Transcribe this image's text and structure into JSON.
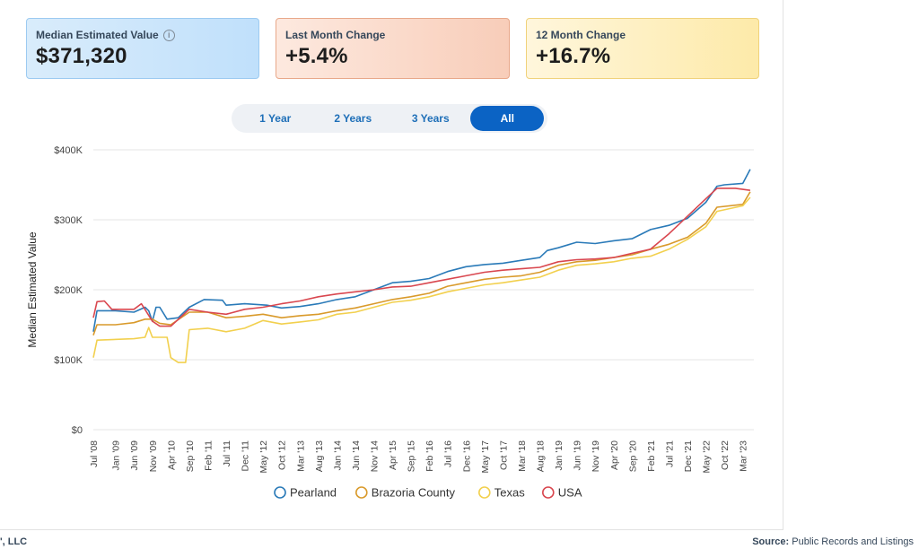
{
  "cards": [
    {
      "label": "Median Estimated Value",
      "value": "$371,320",
      "info_icon": "info-icon"
    },
    {
      "label": "Last Month Change",
      "value": "+5.4%"
    },
    {
      "label": "12 Month Change",
      "value": "+16.7%"
    }
  ],
  "tabs": [
    {
      "label": "1 Year",
      "active": false
    },
    {
      "label": "2 Years",
      "active": false
    },
    {
      "label": "3 Years",
      "active": false
    },
    {
      "label": "All",
      "active": true
    }
  ],
  "footer": {
    "left": "', LLC",
    "source_label": "Source:",
    "source_text": "Public Records and Listings"
  },
  "chart_data": {
    "type": "line",
    "ylabel": "Median Estimated Value",
    "xlabel": "",
    "ylim": [
      0,
      400000
    ],
    "xlim": [
      "2008-07",
      "2023-06"
    ],
    "grid": true,
    "legend_position": "bottom",
    "y_ticks": [
      {
        "value": 0,
        "label": "$0"
      },
      {
        "value": 100000,
        "label": "$100K"
      },
      {
        "value": 200000,
        "label": "$200K"
      },
      {
        "value": 300000,
        "label": "$300K"
      },
      {
        "value": 400000,
        "label": "$400K"
      }
    ],
    "x_ticks": [
      {
        "date": "2008-07",
        "label": "Jul '08"
      },
      {
        "date": "2009-01",
        "label": "Jan '09"
      },
      {
        "date": "2009-06",
        "label": "Jun '09"
      },
      {
        "date": "2009-11",
        "label": "Nov '09"
      },
      {
        "date": "2010-04",
        "label": "Apr '10"
      },
      {
        "date": "2010-09",
        "label": "Sep '10"
      },
      {
        "date": "2011-02",
        "label": "Feb '11"
      },
      {
        "date": "2011-07",
        "label": "Jul '11"
      },
      {
        "date": "2011-12",
        "label": "Dec '11"
      },
      {
        "date": "2012-05",
        "label": "May '12"
      },
      {
        "date": "2012-10",
        "label": "Oct '12"
      },
      {
        "date": "2013-03",
        "label": "Mar '13"
      },
      {
        "date": "2013-08",
        "label": "Aug '13"
      },
      {
        "date": "2014-01",
        "label": "Jan '14"
      },
      {
        "date": "2014-06",
        "label": "Jun '14"
      },
      {
        "date": "2014-11",
        "label": "Nov '14"
      },
      {
        "date": "2015-04",
        "label": "Apr '15"
      },
      {
        "date": "2015-09",
        "label": "Sep '15"
      },
      {
        "date": "2016-02",
        "label": "Feb '16"
      },
      {
        "date": "2016-07",
        "label": "Jul '16"
      },
      {
        "date": "2016-12",
        "label": "Dec '16"
      },
      {
        "date": "2017-05",
        "label": "May '17"
      },
      {
        "date": "2017-10",
        "label": "Oct '17"
      },
      {
        "date": "2018-03",
        "label": "Mar '18"
      },
      {
        "date": "2018-08",
        "label": "Aug '18"
      },
      {
        "date": "2019-01",
        "label": "Jan '19"
      },
      {
        "date": "2019-06",
        "label": "Jun '19"
      },
      {
        "date": "2019-11",
        "label": "Nov '19"
      },
      {
        "date": "2020-04",
        "label": "Apr '20"
      },
      {
        "date": "2020-09",
        "label": "Sep '20"
      },
      {
        "date": "2021-02",
        "label": "Feb '21"
      },
      {
        "date": "2021-07",
        "label": "Jul '21"
      },
      {
        "date": "2021-12",
        "label": "Dec '21"
      },
      {
        "date": "2022-05",
        "label": "May '22"
      },
      {
        "date": "2022-10",
        "label": "Oct '22"
      },
      {
        "date": "2023-03",
        "label": "Mar '23"
      }
    ],
    "series": [
      {
        "name": "Pearland",
        "color": "#2a7ab8",
        "points": [
          [
            "2008-07",
            140000
          ],
          [
            "2008-08",
            170000
          ],
          [
            "2009-01",
            170000
          ],
          [
            "2009-06",
            168000
          ],
          [
            "2009-09",
            175000
          ],
          [
            "2009-10",
            170000
          ],
          [
            "2009-11",
            155000
          ],
          [
            "2009-12",
            175000
          ],
          [
            "2010-01",
            175000
          ],
          [
            "2010-03",
            158000
          ],
          [
            "2010-06",
            160000
          ],
          [
            "2010-09",
            175000
          ],
          [
            "2011-01",
            186000
          ],
          [
            "2011-06",
            185000
          ],
          [
            "2011-07",
            178000
          ],
          [
            "2011-12",
            180000
          ],
          [
            "2012-06",
            178000
          ],
          [
            "2012-10",
            174000
          ],
          [
            "2013-03",
            176000
          ],
          [
            "2013-08",
            180000
          ],
          [
            "2014-01",
            186000
          ],
          [
            "2014-06",
            190000
          ],
          [
            "2014-11",
            200000
          ],
          [
            "2015-04",
            210000
          ],
          [
            "2015-09",
            212000
          ],
          [
            "2016-02",
            216000
          ],
          [
            "2016-07",
            226000
          ],
          [
            "2016-12",
            233000
          ],
          [
            "2017-05",
            236000
          ],
          [
            "2017-10",
            238000
          ],
          [
            "2018-03",
            242000
          ],
          [
            "2018-08",
            246000
          ],
          [
            "2018-10",
            256000
          ],
          [
            "2019-01",
            260000
          ],
          [
            "2019-06",
            268000
          ],
          [
            "2019-11",
            266000
          ],
          [
            "2020-04",
            270000
          ],
          [
            "2020-09",
            273000
          ],
          [
            "2021-02",
            286000
          ],
          [
            "2021-07",
            292000
          ],
          [
            "2021-12",
            302000
          ],
          [
            "2022-05",
            325000
          ],
          [
            "2022-08",
            348000
          ],
          [
            "2022-10",
            350000
          ],
          [
            "2023-03",
            352000
          ],
          [
            "2023-05",
            372000
          ]
        ]
      },
      {
        "name": "Brazoria County",
        "color": "#d99a2b",
        "points": [
          [
            "2008-07",
            135000
          ],
          [
            "2008-08",
            150000
          ],
          [
            "2009-01",
            150000
          ],
          [
            "2009-06",
            153000
          ],
          [
            "2009-09",
            158000
          ],
          [
            "2009-11",
            158000
          ],
          [
            "2010-01",
            152000
          ],
          [
            "2010-04",
            150000
          ],
          [
            "2010-09",
            168000
          ],
          [
            "2011-02",
            168000
          ],
          [
            "2011-07",
            160000
          ],
          [
            "2011-12",
            162000
          ],
          [
            "2012-05",
            165000
          ],
          [
            "2012-10",
            160000
          ],
          [
            "2013-03",
            163000
          ],
          [
            "2013-08",
            165000
          ],
          [
            "2014-01",
            170000
          ],
          [
            "2014-06",
            174000
          ],
          [
            "2014-11",
            180000
          ],
          [
            "2015-04",
            186000
          ],
          [
            "2015-09",
            190000
          ],
          [
            "2016-02",
            195000
          ],
          [
            "2016-07",
            205000
          ],
          [
            "2016-12",
            210000
          ],
          [
            "2017-05",
            215000
          ],
          [
            "2017-10",
            218000
          ],
          [
            "2018-03",
            220000
          ],
          [
            "2018-08",
            225000
          ],
          [
            "2019-01",
            235000
          ],
          [
            "2019-06",
            240000
          ],
          [
            "2019-11",
            242000
          ],
          [
            "2020-04",
            246000
          ],
          [
            "2020-09",
            250000
          ],
          [
            "2021-02",
            258000
          ],
          [
            "2021-07",
            265000
          ],
          [
            "2021-12",
            275000
          ],
          [
            "2022-05",
            295000
          ],
          [
            "2022-08",
            318000
          ],
          [
            "2023-03",
            322000
          ],
          [
            "2023-05",
            340000
          ]
        ]
      },
      {
        "name": "Texas",
        "color": "#f2d04e",
        "points": [
          [
            "2008-07",
            103000
          ],
          [
            "2008-08",
            128000
          ],
          [
            "2009-06",
            130000
          ],
          [
            "2009-09",
            132000
          ],
          [
            "2009-10",
            146000
          ],
          [
            "2009-11",
            132000
          ],
          [
            "2010-03",
            132000
          ],
          [
            "2010-04",
            103000
          ],
          [
            "2010-06",
            96000
          ],
          [
            "2010-08",
            96000
          ],
          [
            "2010-09",
            143000
          ],
          [
            "2011-02",
            145000
          ],
          [
            "2011-07",
            140000
          ],
          [
            "2011-12",
            145000
          ],
          [
            "2012-05",
            156000
          ],
          [
            "2012-10",
            151000
          ],
          [
            "2013-03",
            154000
          ],
          [
            "2013-08",
            157000
          ],
          [
            "2014-01",
            165000
          ],
          [
            "2014-06",
            168000
          ],
          [
            "2014-11",
            175000
          ],
          [
            "2015-04",
            182000
          ],
          [
            "2015-09",
            185000
          ],
          [
            "2016-02",
            190000
          ],
          [
            "2016-07",
            197000
          ],
          [
            "2016-12",
            202000
          ],
          [
            "2017-05",
            207000
          ],
          [
            "2017-10",
            210000
          ],
          [
            "2018-03",
            214000
          ],
          [
            "2018-08",
            218000
          ],
          [
            "2019-01",
            228000
          ],
          [
            "2019-06",
            235000
          ],
          [
            "2019-11",
            237000
          ],
          [
            "2020-04",
            240000
          ],
          [
            "2020-09",
            245000
          ],
          [
            "2021-02",
            248000
          ],
          [
            "2021-07",
            258000
          ],
          [
            "2021-12",
            272000
          ],
          [
            "2022-05",
            290000
          ],
          [
            "2022-08",
            312000
          ],
          [
            "2023-03",
            320000
          ],
          [
            "2023-05",
            332000
          ]
        ]
      },
      {
        "name": "USA",
        "color": "#d9474f",
        "points": [
          [
            "2008-07",
            160000
          ],
          [
            "2008-08",
            183000
          ],
          [
            "2008-10",
            184000
          ],
          [
            "2008-12",
            172000
          ],
          [
            "2009-06",
            172000
          ],
          [
            "2009-08",
            180000
          ],
          [
            "2009-11",
            155000
          ],
          [
            "2010-01",
            148000
          ],
          [
            "2010-04",
            148000
          ],
          [
            "2010-09",
            172000
          ],
          [
            "2011-02",
            168000
          ],
          [
            "2011-07",
            165000
          ],
          [
            "2011-12",
            172000
          ],
          [
            "2012-05",
            175000
          ],
          [
            "2012-10",
            180000
          ],
          [
            "2013-03",
            184000
          ],
          [
            "2013-08",
            190000
          ],
          [
            "2014-01",
            194000
          ],
          [
            "2014-06",
            197000
          ],
          [
            "2014-11",
            200000
          ],
          [
            "2015-04",
            204000
          ],
          [
            "2015-09",
            205000
          ],
          [
            "2016-02",
            210000
          ],
          [
            "2016-07",
            215000
          ],
          [
            "2016-12",
            220000
          ],
          [
            "2017-05",
            225000
          ],
          [
            "2017-10",
            228000
          ],
          [
            "2018-03",
            230000
          ],
          [
            "2018-08",
            232000
          ],
          [
            "2019-01",
            240000
          ],
          [
            "2019-06",
            243000
          ],
          [
            "2019-11",
            244000
          ],
          [
            "2020-04",
            246000
          ],
          [
            "2020-09",
            252000
          ],
          [
            "2021-02",
            258000
          ],
          [
            "2021-07",
            280000
          ],
          [
            "2021-12",
            305000
          ],
          [
            "2022-05",
            330000
          ],
          [
            "2022-08",
            345000
          ],
          [
            "2023-01",
            345000
          ],
          [
            "2023-05",
            342000
          ]
        ]
      }
    ]
  }
}
